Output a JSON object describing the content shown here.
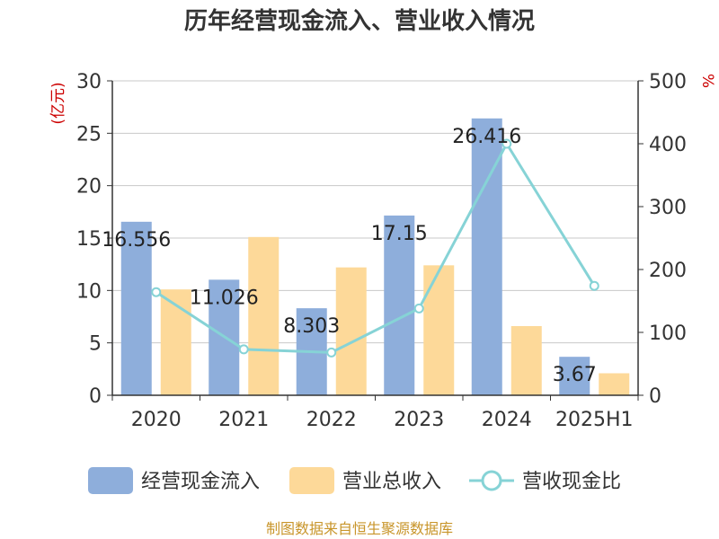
{
  "chart_data": {
    "type": "bar",
    "title": "历年经营现金流入、营业收入情况",
    "categories": [
      "2020",
      "2021",
      "2022",
      "2023",
      "2024",
      "2025H1"
    ],
    "series": [
      {
        "name": "经营现金流入",
        "type": "bar",
        "axis": "left",
        "color": "#8eaedb",
        "values": [
          16.556,
          11.026,
          8.303,
          17.15,
          26.416,
          3.67
        ],
        "labels": [
          "16.556",
          "11.026",
          "8.303",
          "17.15",
          "26.416",
          "3.67"
        ]
      },
      {
        "name": "营业总收入",
        "type": "bar",
        "axis": "left",
        "color": "#fdd999",
        "values": [
          10.1,
          15.1,
          12.2,
          12.4,
          6.6,
          2.1
        ]
      },
      {
        "name": "营收现金比",
        "type": "line",
        "axis": "right",
        "color": "#86d3d6",
        "values": [
          164,
          73,
          68,
          138,
          400,
          174
        ]
      }
    ],
    "y_left": {
      "unit": "(亿元)",
      "range": [
        0,
        30
      ],
      "ticks": [
        "0",
        "5",
        "10",
        "15",
        "20",
        "25",
        "30"
      ]
    },
    "y_right": {
      "unit": "%",
      "range": [
        0,
        500
      ],
      "ticks": [
        "0",
        "100",
        "200",
        "300",
        "400",
        "500"
      ]
    },
    "grid": true,
    "legend_position": "bottom"
  },
  "source": "制图数据来自恒生聚源数据库"
}
